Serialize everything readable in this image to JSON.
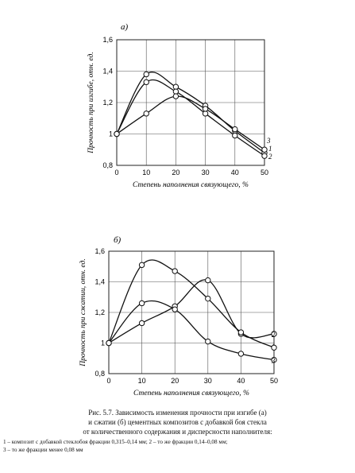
{
  "caption": {
    "line1": "Рис. 5.7. Зависимость изменения прочности при изгибе (а)",
    "line2": "и сжатии (б) цементных композитов с добавкой боя стекла",
    "line3": "от количественного содержания и дисперсности наполнителя:",
    "legend_line1": "1 – композит с добавкой стеклобоя фракции 0,315–0,14 мм; 2 – то же фракции 0,14–0,08 мм;",
    "legend_line2": "3 – то же фракции менее 0,08 мм"
  },
  "chart_data": [
    {
      "type": "line",
      "panel_label": "а)",
      "xlabel": "Степень наполнения связующего, %",
      "ylabel": "Прочность при изгибе, отн. ед.",
      "x_ticks": [
        "0",
        "10",
        "20",
        "30",
        "40",
        "50"
      ],
      "y_ticks": [
        "0,8",
        "1",
        "1,2",
        "1,4",
        "1,6"
      ],
      "xlim": [
        0,
        50
      ],
      "ylim": [
        0.8,
        1.6
      ],
      "grid": true,
      "x": [
        0,
        10,
        20,
        30,
        40,
        50
      ],
      "series": [
        {
          "name": "1",
          "values": [
            1.0,
            1.38,
            1.3,
            1.18,
            1.02,
            0.88
          ]
        },
        {
          "name": "2",
          "values": [
            1.0,
            1.33,
            1.27,
            1.13,
            0.99,
            0.86
          ]
        },
        {
          "name": "3",
          "values": [
            1.0,
            1.13,
            1.24,
            1.16,
            1.03,
            0.9
          ]
        }
      ]
    },
    {
      "type": "line",
      "panel_label": "б)",
      "xlabel": "Степень наполнения связующего, %",
      "ylabel": "Прочность при сжатии, отн. ед.",
      "x_ticks": [
        "0",
        "10",
        "20",
        "30",
        "40",
        "50"
      ],
      "y_ticks": [
        "0,8",
        "1",
        "1,2",
        "1,4",
        "1,6"
      ],
      "xlim": [
        0,
        50
      ],
      "ylim": [
        0.8,
        1.6
      ],
      "grid": true,
      "x": [
        0,
        10,
        20,
        30,
        40,
        50
      ],
      "series": [
        {
          "name": "1",
          "values": [
            1.0,
            1.13,
            1.24,
            1.41,
            1.06,
            1.06
          ]
        },
        {
          "name": "2",
          "values": [
            1.0,
            1.51,
            1.47,
            1.29,
            1.07,
            0.97
          ]
        },
        {
          "name": "3",
          "values": [
            1.0,
            1.26,
            1.22,
            1.01,
            0.93,
            0.89
          ]
        }
      ]
    }
  ]
}
